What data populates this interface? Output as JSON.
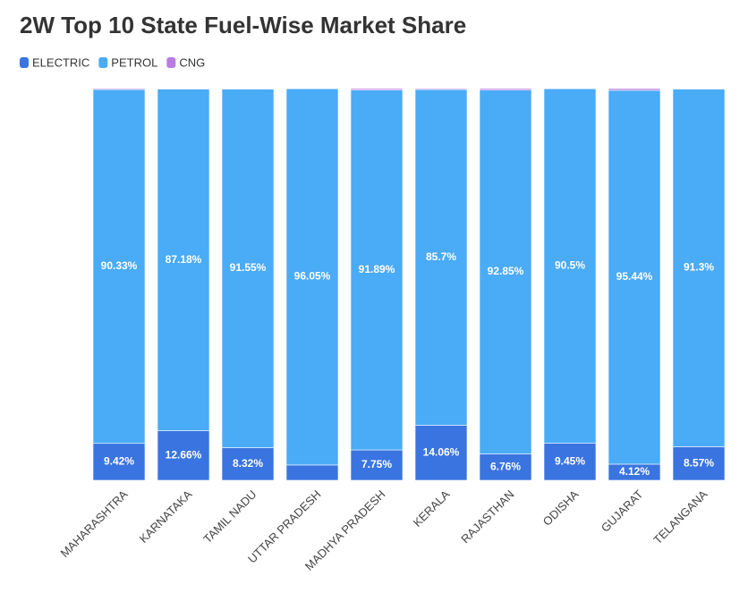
{
  "chart_data": {
    "type": "stacked_bar",
    "title": "2W Top 10 State Fuel-Wise Market Share",
    "categories": [
      "MAHARASHTRA",
      "KARNATAKA",
      "TAMIL NADU",
      "UTTAR PRADESH",
      "MADHYA PRADESH",
      "KERALA",
      "RAJASTHAN",
      "ODISHA",
      "GUJARAT",
      "TELANGANA"
    ],
    "series": [
      {
        "name": "ELECTRIC",
        "color": "#3a74e0",
        "values": [
          9.42,
          12.66,
          8.32,
          3.9,
          7.75,
          14.06,
          6.76,
          9.45,
          4.12,
          8.57
        ],
        "value_labels": [
          "9.42%",
          "12.66%",
          "8.32%",
          null,
          "7.75%",
          "14.06%",
          "6.76%",
          "9.45%",
          "4.12%",
          "8.57%"
        ]
      },
      {
        "name": "PETROL",
        "color": "#4aabf7",
        "values": [
          90.33,
          87.18,
          91.55,
          96.05,
          91.89,
          85.7,
          92.85,
          90.5,
          95.44,
          91.3
        ],
        "value_labels": [
          "90.33%",
          "87.18%",
          "91.55%",
          "96.05%",
          "91.89%",
          "85.7%",
          "92.85%",
          "90.5%",
          "95.44%",
          "91.3%"
        ]
      },
      {
        "name": "CNG",
        "color": "#b87de2",
        "values": [
          0.25,
          0.16,
          0.13,
          0.05,
          0.36,
          0.24,
          0.39,
          0.05,
          0.44,
          0.13
        ]
      }
    ],
    "ylim": [
      0,
      100
    ]
  }
}
